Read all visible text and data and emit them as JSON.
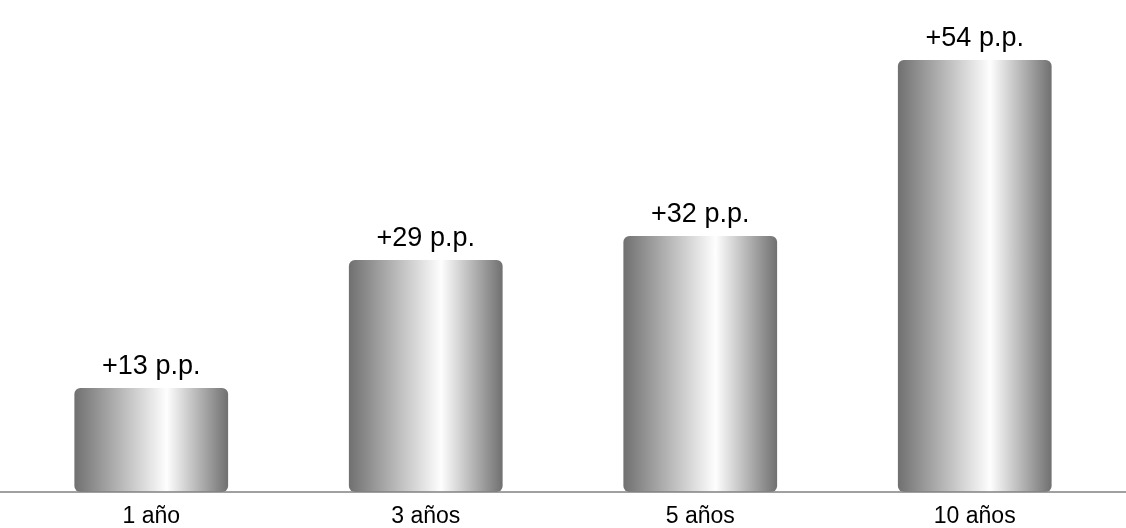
{
  "chart_data": {
    "type": "bar",
    "categories": [
      "1 año",
      "3 años",
      "5 años",
      "10 años"
    ],
    "values": [
      13,
      29,
      32,
      54
    ],
    "color": "#b8b8b8",
    "value_labels": [
      "+13 p.p.",
      "+29 p.p.",
      "+32 p.p.",
      "+54 p.p."
    ]
  }
}
